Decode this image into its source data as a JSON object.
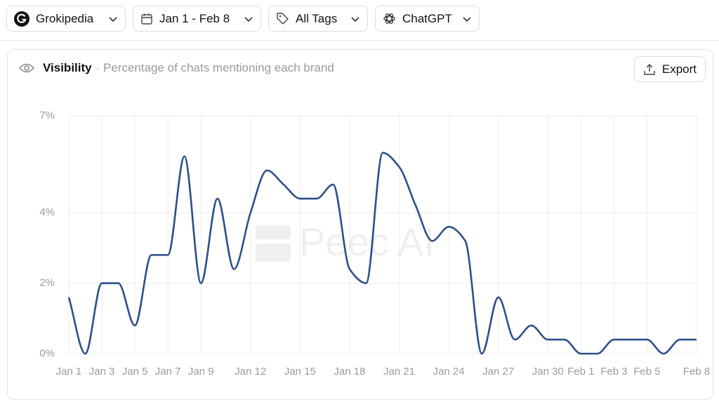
{
  "toolbar": {
    "brand": "Grokipedia",
    "date_range": "Jan 1 - Feb 8",
    "tags": "All Tags",
    "model": "ChatGPT"
  },
  "card": {
    "title": "Visibility",
    "subtitle": "· Percentage of chats mentioning each brand",
    "export": "Export",
    "watermark": "Peec AI"
  },
  "chart_data": {
    "type": "line",
    "categories": [
      "Jan 1",
      null,
      "Jan 3",
      null,
      "Jan 5",
      null,
      "Jan 7",
      null,
      "Jan 9",
      null,
      null,
      "Jan 12",
      null,
      null,
      "Jan 15",
      null,
      null,
      "Jan 18",
      null,
      null,
      "Jan 21",
      null,
      null,
      "Jan 24",
      null,
      null,
      "Jan 27",
      null,
      null,
      "Jan 30",
      null,
      "Feb 1",
      null,
      "Feb 3",
      null,
      "Feb 5",
      null,
      null,
      "Feb 8"
    ],
    "values": [
      1.6,
      0,
      2,
      2,
      0.8,
      2.8,
      2.8,
      5.6,
      2,
      4.4,
      2.4,
      4,
      5.2,
      4.8,
      4.4,
      4.4,
      4.8,
      2.4,
      2,
      5.7,
      5.3,
      4.2,
      3.2,
      3.6,
      3.2,
      0,
      1.6,
      0.4,
      0.8,
      0.4,
      0.4,
      0,
      0,
      0.4,
      0.4,
      0.4,
      0,
      0.4,
      0.4
    ],
    "color": "#2d4f8a",
    "ylim": [
      0,
      6.75
    ],
    "yticks": [
      {
        "value": 0,
        "label": "0%"
      },
      {
        "value": 2,
        "label": "2%"
      },
      {
        "value": 4,
        "label": "4%"
      },
      {
        "value": 6.75,
        "label": "7%"
      }
    ],
    "grid": true
  }
}
